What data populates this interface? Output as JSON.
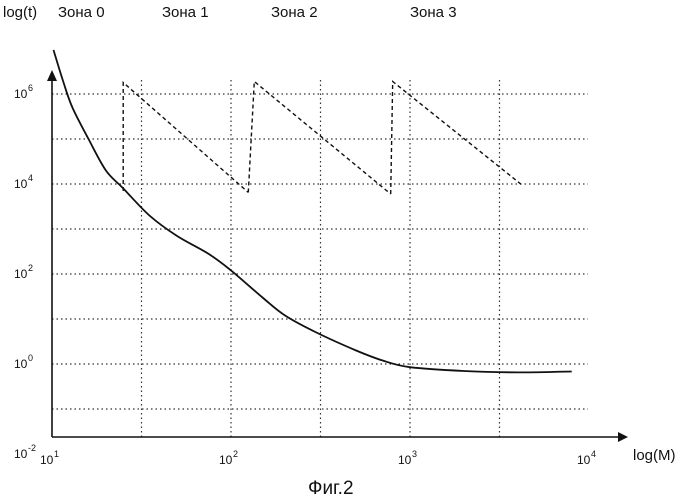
{
  "chart_data": {
    "type": "line",
    "title": "",
    "caption": "Фиг.2",
    "ylabel": "log(t)",
    "xlabel": "log(M)",
    "x_scale": "log",
    "y_scale": "log",
    "xlim": [
      10,
      12000
    ],
    "ylim": [
      0.01,
      10000000
    ],
    "grid": true,
    "x_ticks": [
      {
        "value": 10,
        "base": "10",
        "exp": "1"
      },
      {
        "value": 100,
        "base": "10",
        "exp": "2"
      },
      {
        "value": 1000,
        "base": "10",
        "exp": "3"
      },
      {
        "value": 10000,
        "base": "10",
        "exp": "4"
      }
    ],
    "y_ticks": [
      {
        "value": 0.01,
        "base": "10",
        "exp": "-2"
      },
      {
        "value": 1,
        "base": "10",
        "exp": "0"
      },
      {
        "value": 100,
        "base": "10",
        "exp": "2"
      },
      {
        "value": 10000,
        "base": "10",
        "exp": "4"
      },
      {
        "value": 1000000,
        "base": "10",
        "exp": "6"
      }
    ],
    "zone_labels": [
      "Зона 0",
      "Зона 1",
      "Зона 2",
      "Зона 3"
    ],
    "series": [
      {
        "style": "solid",
        "points": [
          [
            10.2,
            25000000
          ],
          [
            11.5,
            2000000
          ],
          [
            13,
            500000
          ],
          [
            16,
            100000
          ],
          [
            20,
            20000
          ],
          [
            25,
            8000
          ],
          [
            35,
            2000
          ],
          [
            50,
            700
          ],
          [
            75,
            280
          ],
          [
            100,
            120
          ],
          [
            150,
            30
          ],
          [
            200,
            12
          ],
          [
            300,
            5
          ],
          [
            500,
            2
          ],
          [
            700,
            1.2
          ],
          [
            1000,
            0.85
          ],
          [
            2000,
            0.7
          ],
          [
            4000,
            0.65
          ],
          [
            8000,
            0.68
          ]
        ]
      },
      {
        "style": "dashed",
        "segments": [
          [
            [
              25,
              7000
            ],
            [
              25,
              1800000
            ],
            [
              125,
              6500
            ]
          ],
          [
            [
              125,
              6500
            ],
            [
              135,
              1900000
            ],
            [
              780,
              6000
            ]
          ],
          [
            [
              780,
              6000
            ],
            [
              800,
              1900000
            ],
            [
              4300,
              9000
            ]
          ]
        ]
      }
    ]
  }
}
